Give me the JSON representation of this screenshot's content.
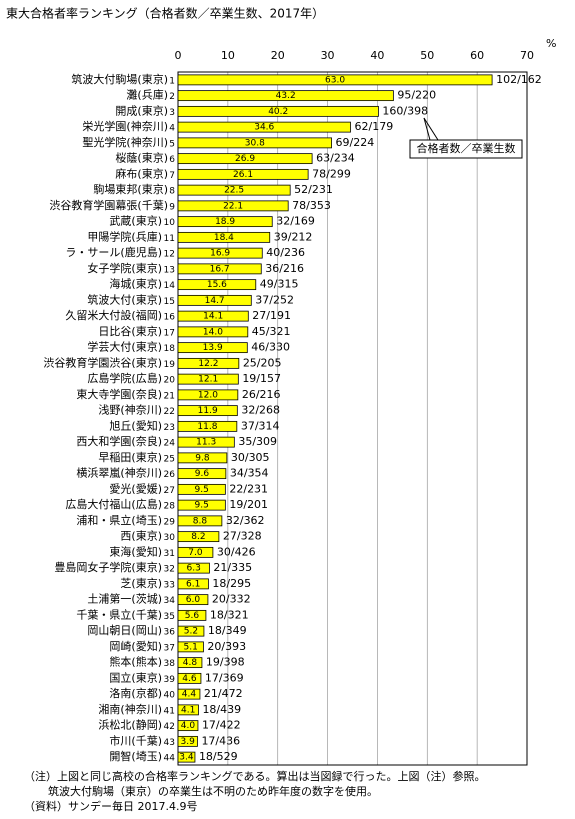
{
  "chart_data": {
    "type": "bar",
    "orientation": "horizontal",
    "title": "東大合格者率ランキング（合格者数／卒業生数、2017年）",
    "x_unit": "%",
    "categories": [
      "筑波大付駒場(東京)",
      "灘(兵庫)",
      "開成(東京)",
      "栄光学園(神奈川)",
      "聖光学院(神奈川)",
      "桜蔭(東京)",
      "麻布(東京)",
      "駒場東邦(東京)",
      "渋谷教育学園幕張(千葉)",
      "武蔵(東京)",
      "甲陽学院(兵庫)",
      "ラ・サール(鹿児島)",
      "女子学院(東京)",
      "海城(東京)",
      "筑波大付(東京)",
      "久留米大付設(福岡)",
      "日比谷(東京)",
      "学芸大付(東京)",
      "渋谷教育学園渋谷(東京)",
      "広島学院(広島)",
      "東大寺学園(奈良)",
      "浅野(神奈川)",
      "旭丘(愛知)",
      "西大和学園(奈良)",
      "早稲田(東京)",
      "横浜翠嵐(神奈川)",
      "愛光(愛媛)",
      "広島大付福山(広島)",
      "浦和・県立(埼玉)",
      "西(東京)",
      "東海(愛知)",
      "豊島岡女子学院(東京)",
      "芝(東京)",
      "土浦第一(茨城)",
      "千葉・県立(千葉)",
      "岡山朝日(岡山)",
      "岡崎(愛知)",
      "熊本(熊本)",
      "国立(東京)",
      "洛南(京都)",
      "湘南(神奈川)",
      "浜松北(静岡)",
      "市川(千葉)",
      "開智(埼玉)"
    ],
    "ranks": [
      1,
      2,
      3,
      4,
      5,
      6,
      7,
      8,
      9,
      10,
      11,
      12,
      13,
      14,
      15,
      16,
      17,
      18,
      19,
      20,
      21,
      22,
      23,
      24,
      25,
      26,
      27,
      28,
      29,
      30,
      31,
      32,
      33,
      34,
      35,
      36,
      37,
      38,
      39,
      40,
      41,
      42,
      43,
      44
    ],
    "values": [
      63.0,
      43.2,
      40.2,
      34.6,
      30.8,
      26.9,
      26.1,
      22.5,
      22.1,
      18.9,
      18.4,
      16.9,
      16.7,
      15.6,
      14.7,
      14.1,
      14.0,
      13.9,
      12.2,
      12.1,
      12.0,
      11.9,
      11.8,
      11.3,
      9.8,
      9.6,
      9.5,
      9.5,
      8.8,
      8.2,
      7.0,
      6.3,
      6.1,
      6.0,
      5.6,
      5.2,
      5.1,
      4.8,
      4.6,
      4.4,
      4.1,
      4.0,
      3.9,
      3.4
    ],
    "value_labels": [
      "63.0",
      "43.2",
      "40.2",
      "34.6",
      "30.8",
      "26.9",
      "26.1",
      "22.5",
      "22.1",
      "18.9",
      "18.4",
      "16.9",
      "16.7",
      "15.6",
      "14.7",
      "14.1",
      "14.0",
      "13.9",
      "12.2",
      "12.1",
      "12.0",
      "11.9",
      "11.8",
      "11.3",
      "9.8",
      "9.6",
      "9.5",
      "9.5",
      "8.8",
      "8.2",
      "7.0",
      "6.3",
      "6.1",
      "6.0",
      "5.6",
      "5.2",
      "5.1",
      "4.8",
      "4.6",
      "4.4",
      "4.1",
      "4.0",
      "3.9",
      "3.4"
    ],
    "ratios": [
      "102/162",
      "95/220",
      "160/398",
      "62/179",
      "69/224",
      "63/234",
      "78/299",
      "52/231",
      "78/353",
      "32/169",
      "39/212",
      "40/236",
      "36/216",
      "49/315",
      "37/252",
      "27/191",
      "45/321",
      "46/330",
      "25/205",
      "19/157",
      "26/216",
      "32/268",
      "37/314",
      "35/309",
      "30/305",
      "34/354",
      "22/231",
      "19/201",
      "32/362",
      "27/328",
      "30/426",
      "21/335",
      "18/295",
      "20/332",
      "18/321",
      "18/349",
      "20/393",
      "19/398",
      "17/369",
      "21/472",
      "18/439",
      "17/422",
      "17/436",
      "18/529"
    ],
    "color": "#ffff00",
    "xlim": [
      0,
      70
    ],
    "xticks": [
      0,
      10,
      20,
      30,
      40,
      50,
      60,
      70
    ],
    "grid": true,
    "annotation": "合格者数／卒業生数",
    "notes": [
      "（注）上図と同じ高校の合格率ランキングである。算出は当図録で行った。上図（注）参照。",
      "筑波大付駒場（東京）の卒業生は不明のため昨年度の数字を使用。",
      "（資料）サンデー毎日 2017.4.9号"
    ]
  }
}
